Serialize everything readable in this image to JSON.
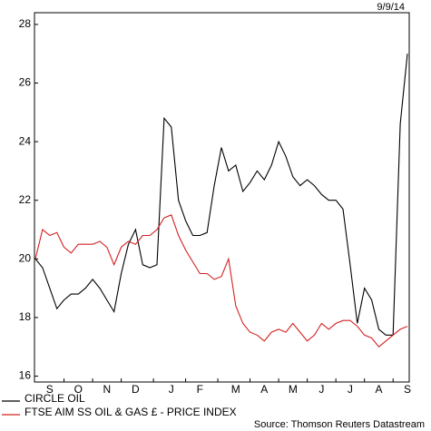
{
  "chart_data": {
    "type": "line",
    "date": "9/9/14",
    "source": "Source: Thomson Reuters Datastream",
    "categories": [
      null,
      null,
      "S",
      null,
      null,
      null,
      "O",
      null,
      null,
      null,
      "N",
      null,
      null,
      null,
      "D",
      null,
      null,
      null,
      null,
      "J",
      null,
      null,
      null,
      "F",
      null,
      null,
      null,
      null,
      "M",
      null,
      null,
      null,
      "A",
      null,
      null,
      null,
      "M",
      null,
      null,
      null,
      "J",
      null,
      null,
      null,
      "J",
      null,
      null,
      null,
      "A",
      null,
      null,
      null,
      "S"
    ],
    "series": [
      {
        "name": "CIRCLE OIL",
        "color": "#000000",
        "values": [
          20.0,
          19.7,
          19.0,
          18.3,
          18.6,
          18.8,
          18.8,
          19.0,
          19.3,
          19.0,
          18.6,
          18.2,
          19.5,
          20.5,
          21.0,
          19.8,
          19.7,
          19.8,
          24.8,
          24.5,
          22.0,
          21.3,
          20.8,
          20.8,
          20.9,
          22.5,
          23.8,
          23.0,
          23.2,
          22.3,
          22.6,
          23.0,
          22.7,
          23.2,
          24.0,
          23.5,
          22.8,
          22.5,
          22.7,
          22.5,
          22.2,
          22.0,
          22.0,
          21.7,
          19.8,
          17.8,
          19.0,
          18.6,
          17.6,
          17.4,
          17.4,
          24.6,
          27.0
        ]
      },
      {
        "name": "FTSE AIM SS OIL & GAS £ - PRICE INDEX",
        "color": "#d42020",
        "values": [
          20.0,
          21.0,
          20.8,
          20.9,
          20.4,
          20.2,
          20.5,
          20.5,
          20.5,
          20.6,
          20.4,
          19.8,
          20.4,
          20.6,
          20.5,
          20.8,
          20.8,
          21.0,
          21.4,
          21.5,
          20.8,
          20.3,
          19.9,
          19.5,
          19.5,
          19.3,
          19.4,
          20.0,
          18.4,
          17.8,
          17.5,
          17.4,
          17.2,
          17.5,
          17.6,
          17.5,
          17.8,
          17.5,
          17.2,
          17.4,
          17.8,
          17.6,
          17.8,
          17.9,
          17.9,
          17.7,
          17.4,
          17.3,
          17.0,
          17.2,
          17.4,
          17.6,
          17.7
        ]
      }
    ],
    "ylim": [
      15.8,
      28.4
    ],
    "yticks": [
      16,
      18,
      20,
      22,
      24,
      26,
      28
    ]
  }
}
